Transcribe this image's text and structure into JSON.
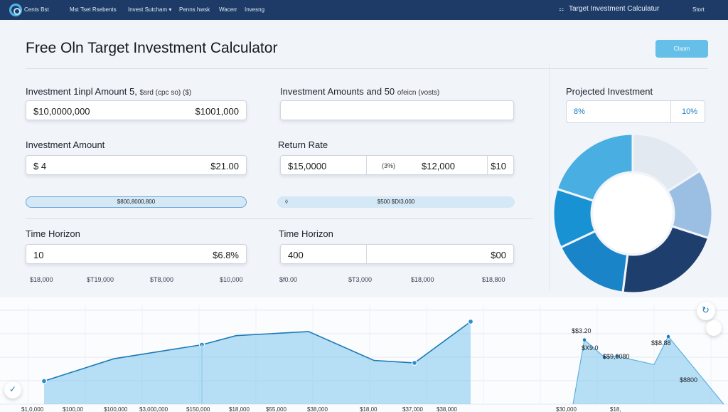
{
  "topbar": {
    "logo_text": "Cents Bst",
    "nav": [
      "Mst Tset Rsebents",
      "Invest Sutcham ▾",
      "Penns hwsk",
      "Wacerr",
      "Invesng"
    ],
    "brand_icon": "⚏",
    "brand_title": "Target Investment Calculatur",
    "search_label": "Stort"
  },
  "page": {
    "title": "Free Oln Target Investment Calculator",
    "calc_button": "Clsom"
  },
  "left_col": {
    "label1": "Investment 1inpl Amount 5,",
    "label1_small": "$srd (cpc so) ($)",
    "field1_left": "$10,0000,000",
    "field1_right": "$1001,000",
    "label2": "Investment Amount",
    "field2_left": "$ 4",
    "field2_right": "$21.00",
    "slider_text": "$800,8000,800",
    "label3": "Time Horizon",
    "field3_left": "10",
    "field3_right": "$6.8%",
    "ticks": [
      "$18,000",
      "$T19,000",
      "$T8,000",
      "$10,000"
    ]
  },
  "mid_col": {
    "label1": "Investment Amounts and 50",
    "label1_small": "ofeicn (vosts)",
    "field1_value": "",
    "label2": "Return Rate",
    "field2_left": "$15,0000",
    "field2_mid": "(3%)",
    "field2_right": "$12,000",
    "field2_far": "$10",
    "slider_icon": "◊",
    "slider_text": "$500 $DI3,000",
    "label3": "Time Horizon",
    "field3_left": "400",
    "field3_right": "$00",
    "ticks": [
      "$f0.00",
      "$T3,000",
      "$18,000",
      "$18,800"
    ]
  },
  "right_col": {
    "label": "Projected Investment",
    "field_left": "8%",
    "field_right": "10%"
  },
  "donut": {
    "colors": [
      "#e3e9f1",
      "#9bbfe2",
      "#1e3f6e",
      "#1a84c9",
      "#1992d4",
      "#49afe3"
    ],
    "values": [
      16,
      14,
      22,
      16,
      12,
      20
    ]
  },
  "chart_data": {
    "type": "area",
    "title": "",
    "xlabel": "",
    "ylabel": "",
    "x_ticks": [
      "$1,0,000",
      "$100,00",
      "$100,000",
      "$3,000,000",
      "$150,000",
      "$18,000",
      "$55,000",
      "$38,000",
      "$18,00",
      "$37,000",
      "$38,000",
      "$30,000",
      "$18,"
    ],
    "series": [
      {
        "values": [
          0.28,
          0.55,
          0.72,
          0.83,
          0.88,
          0.85,
          0.53,
          0.5,
          1.0
        ]
      },
      {
        "values": [
          0.0,
          0.78,
          0.57,
          0.58,
          0.48,
          0.82,
          0.0
        ]
      }
    ],
    "annotations": [
      "$$3.20",
      "$X9.0",
      "$$9,0080",
      "$$8.88",
      "$8800"
    ],
    "fill_color": "#7ec6ec",
    "line_color": "#1c79b6"
  },
  "float_buttons": {
    "refresh_icon": "↻",
    "check_icon": "✓"
  }
}
